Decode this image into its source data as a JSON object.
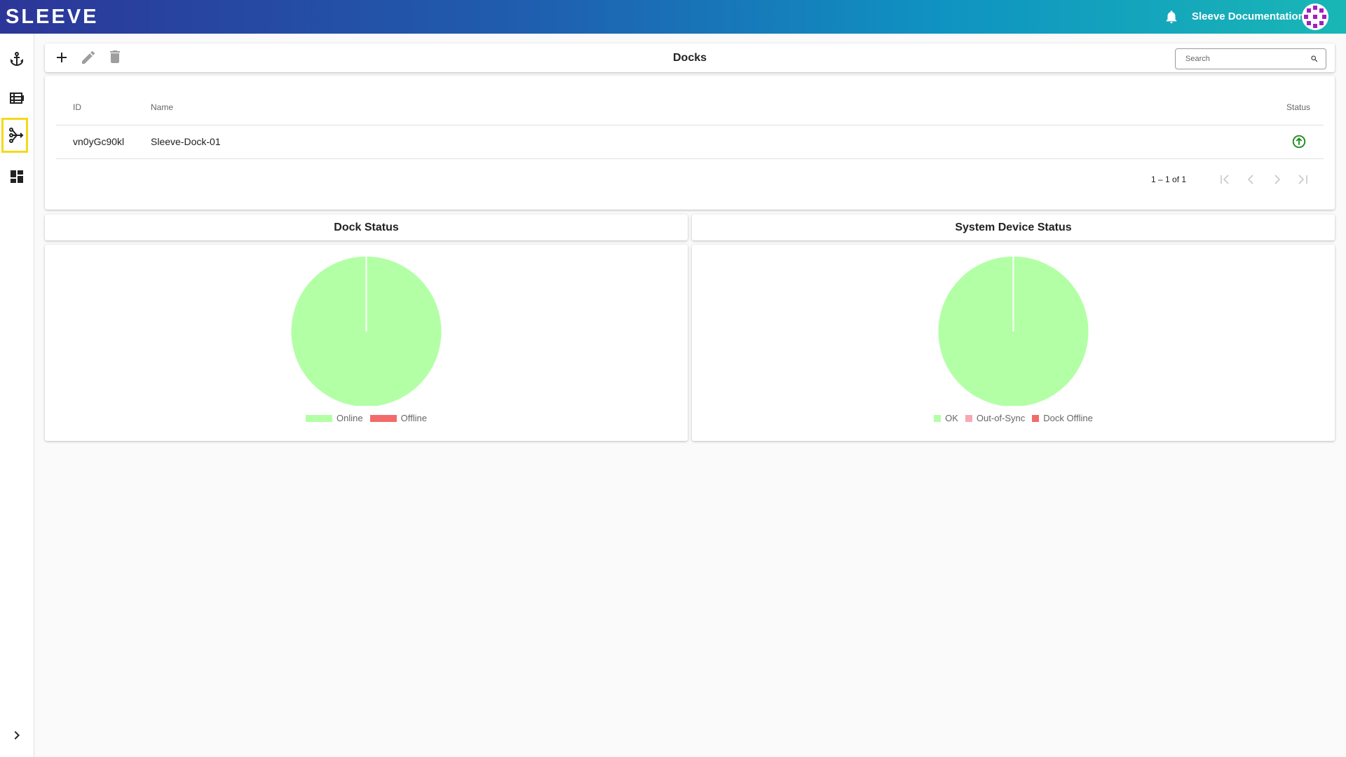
{
  "header": {
    "logo": "SLEEVE",
    "link": "Sleeve Documentation"
  },
  "toolbar": {
    "title": "Docks",
    "search_placeholder": "Search"
  },
  "table": {
    "columns": [
      "ID",
      "Name",
      "Status"
    ],
    "rows": [
      [
        "vn0yGc90kl",
        "Sleeve-Dock-01"
      ]
    ]
  },
  "pagination": {
    "range": "1 – 1 of 1"
  },
  "chart_data": [
    {
      "type": "pie",
      "title": "Dock Status",
      "categories": [
        "Online",
        "Offline"
      ],
      "values": [
        1,
        0
      ],
      "colors": [
        "#b3ffa6",
        "#f26b6b"
      ]
    },
    {
      "type": "pie",
      "title": "System Device Status",
      "categories": [
        "OK",
        "Out-of-Sync",
        "Dock Offline"
      ],
      "values": [
        1,
        0,
        0
      ],
      "colors": [
        "#b3ffa6",
        "#f7a9b1",
        "#f26b6b"
      ]
    }
  ]
}
